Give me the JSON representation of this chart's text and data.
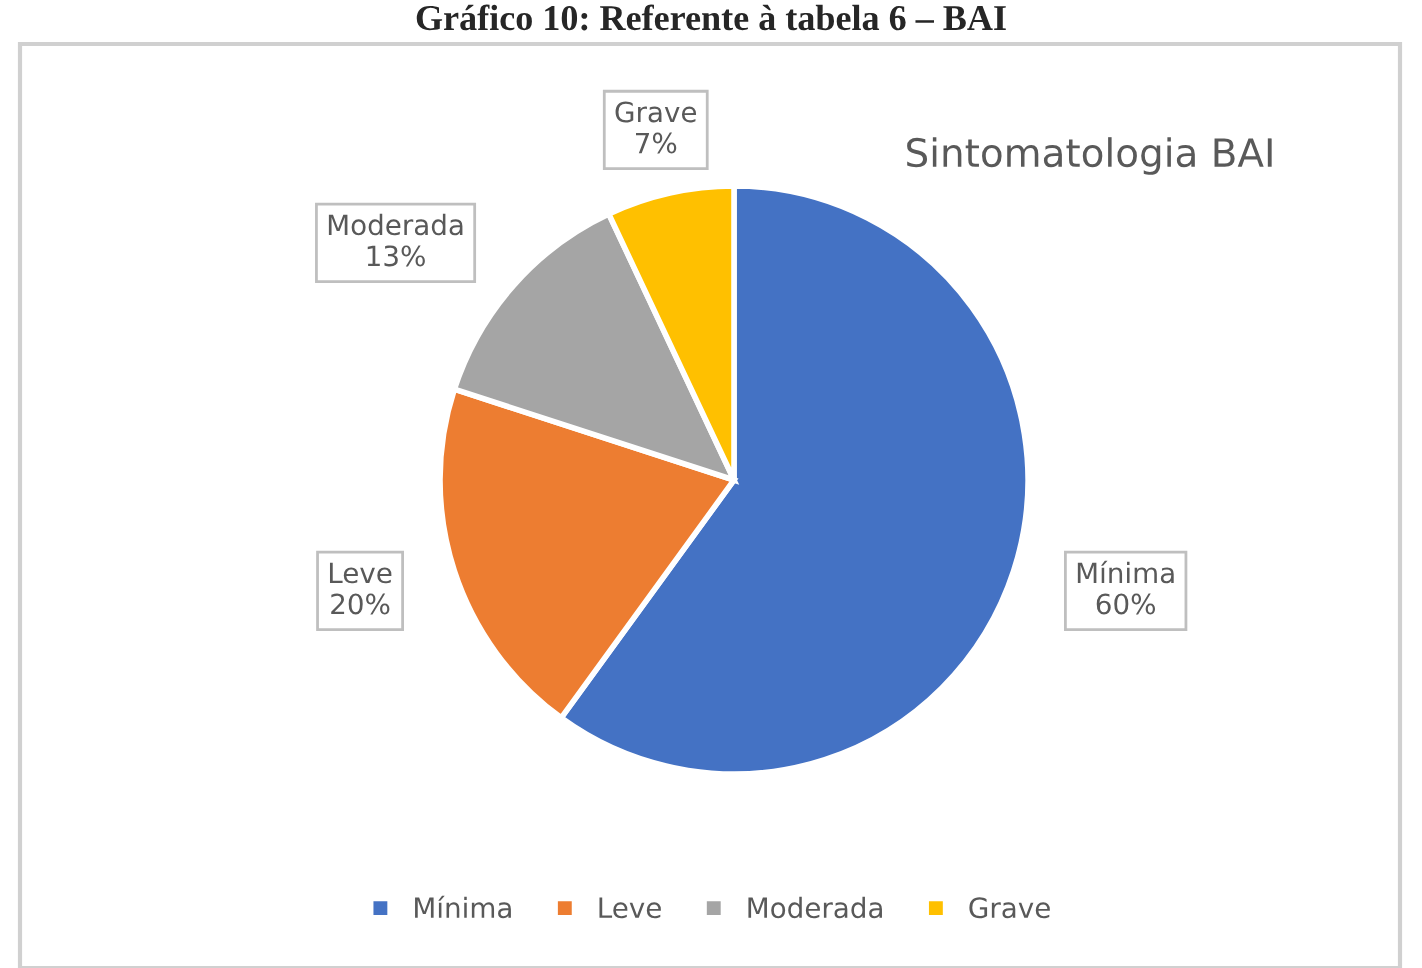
{
  "chart_data": {
    "type": "pie",
    "title": "Sintomatologia BAI",
    "annotations": [
      "Gráfico 10: Referente à tabela 6 – BAI"
    ],
    "categories": [
      "Mínima",
      "Leve",
      "Moderada",
      "Grave"
    ],
    "values": [
      60,
      20,
      13,
      7
    ],
    "value_labels": [
      "60%",
      "20%",
      "13%",
      "7%"
    ],
    "colors": [
      "#4472c4",
      "#ed7d31",
      "#a5a5a5",
      "#ffc000"
    ],
    "legend": "bottom"
  }
}
